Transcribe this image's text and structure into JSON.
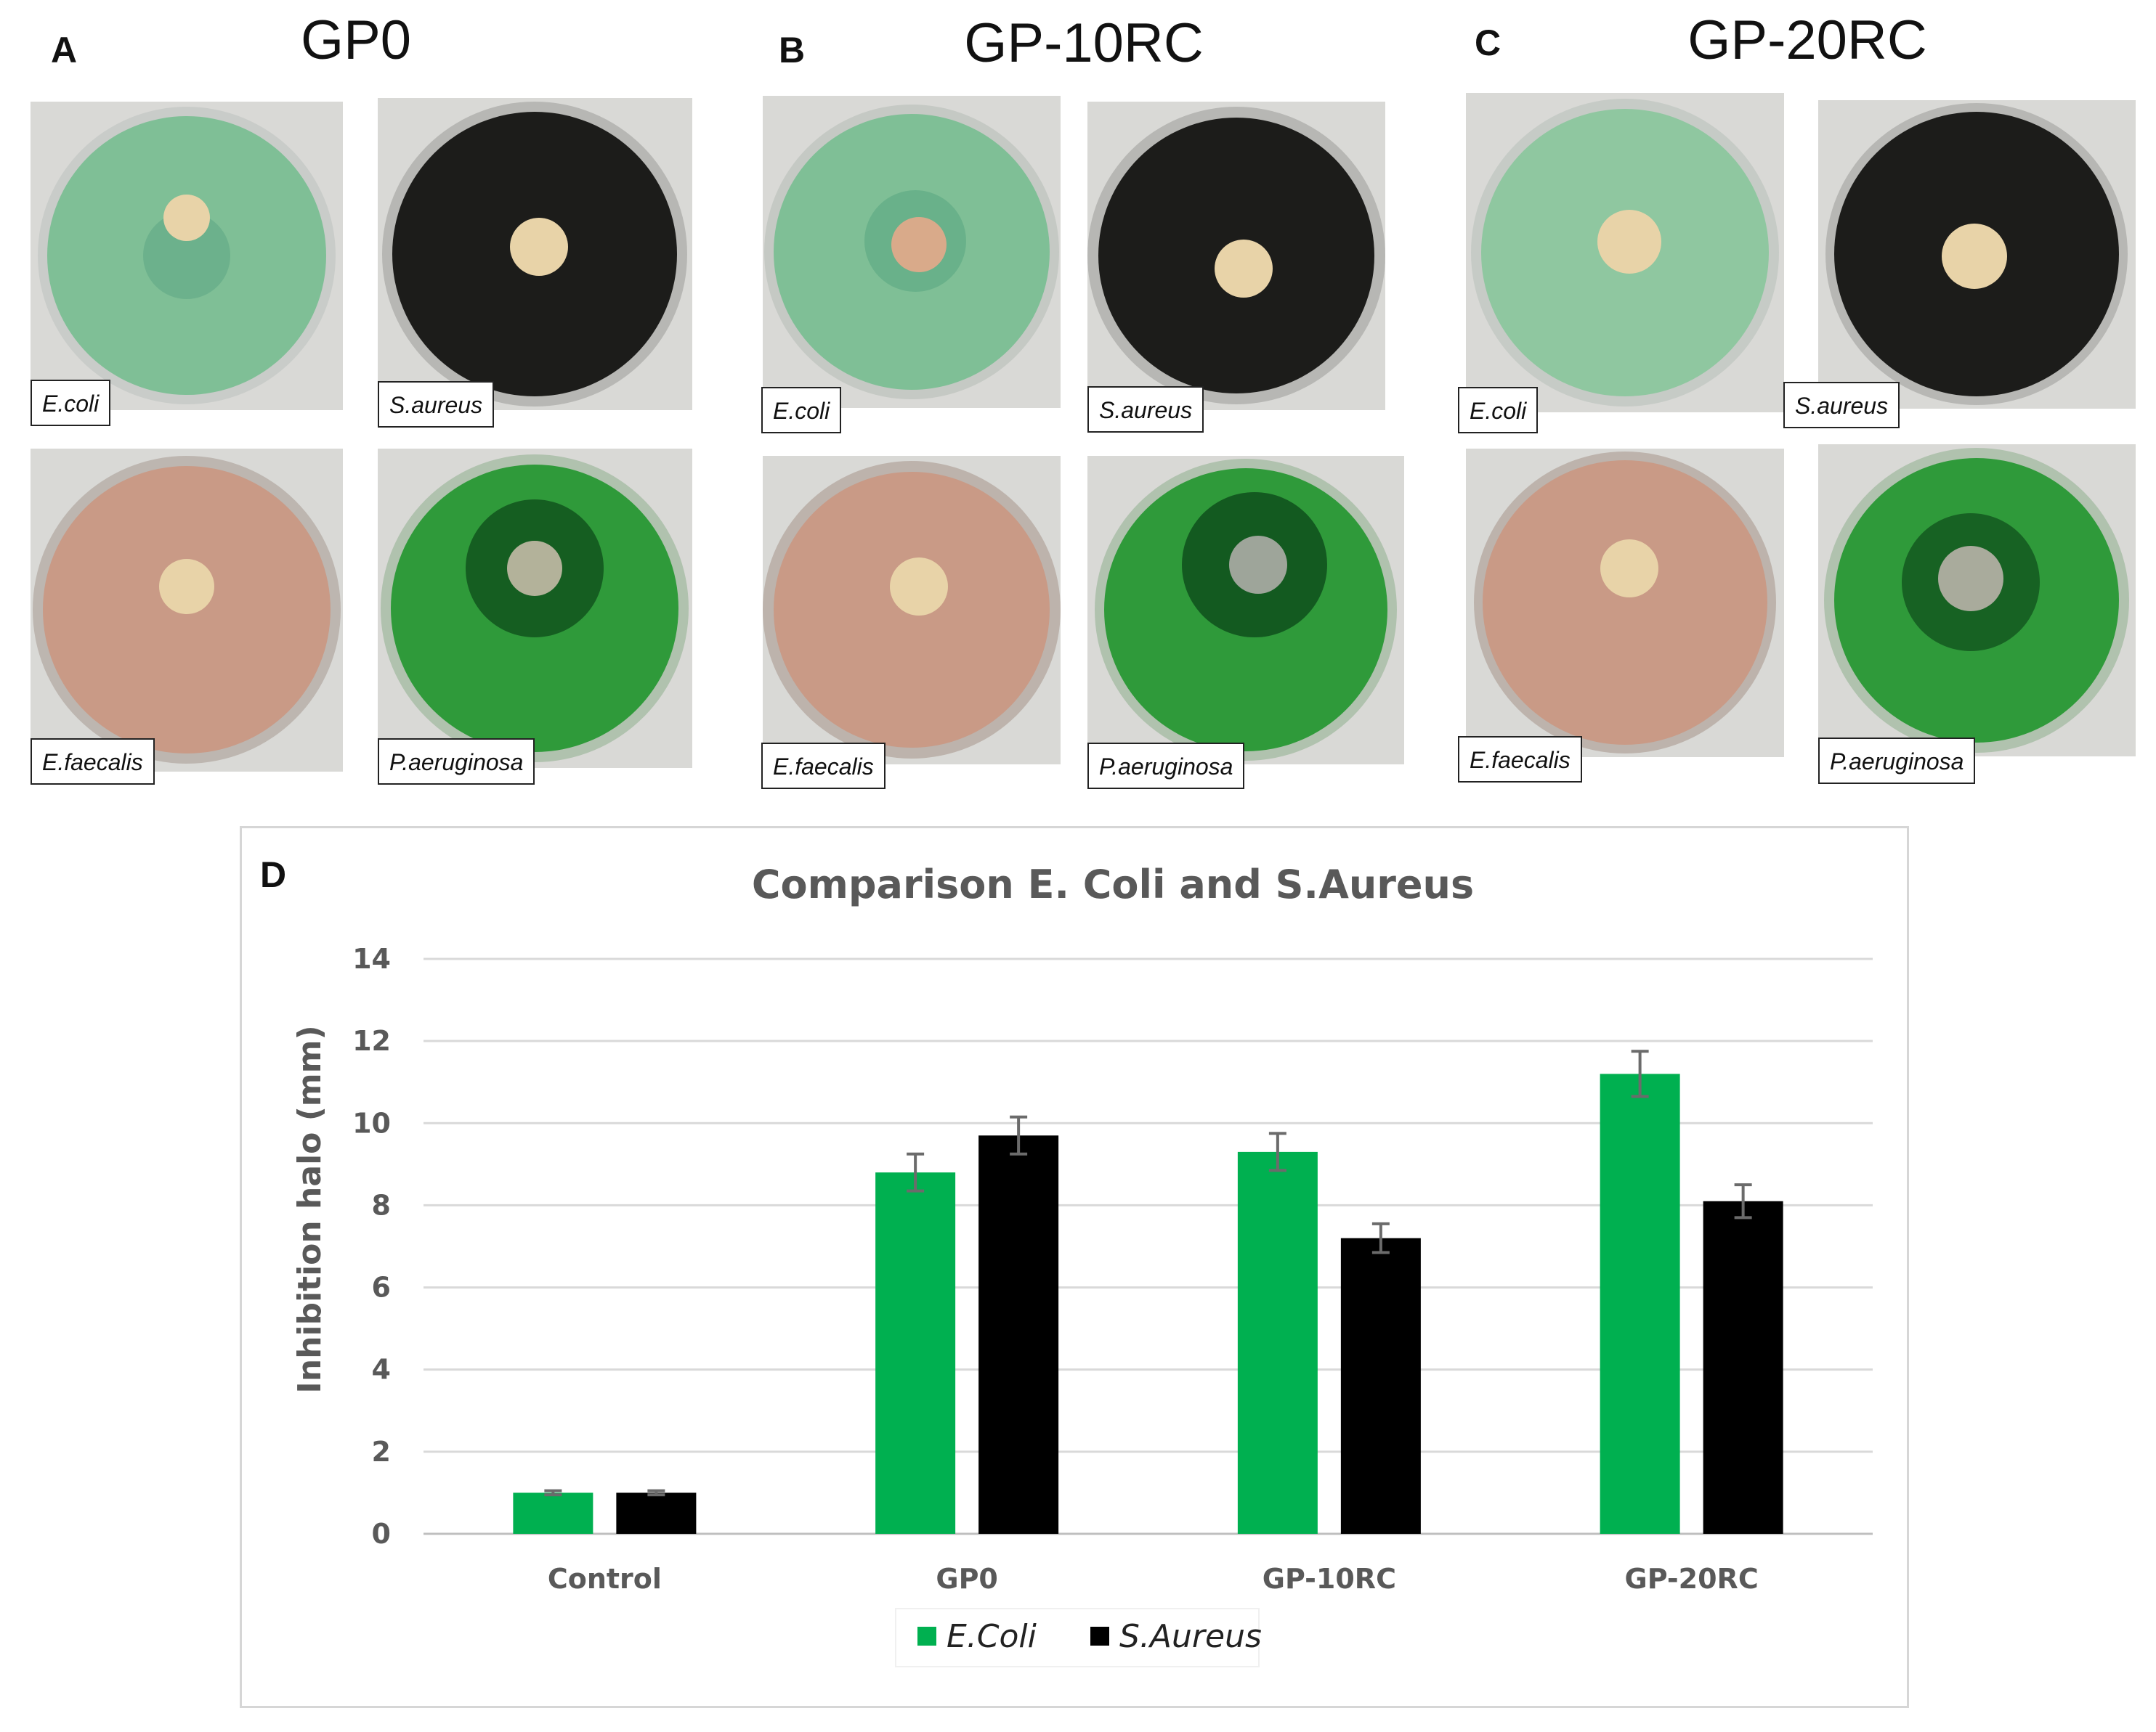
{
  "panels": {
    "A": {
      "letter": "A",
      "title": "GP0"
    },
    "B": {
      "letter": "B",
      "title": "GP-10RC"
    },
    "C": {
      "letter": "C",
      "title": "GP-20RC"
    },
    "D": {
      "letter": "D"
    }
  },
  "plate_labels": {
    "e_coli": "E.coli",
    "s_aureus": "S.aureus",
    "e_faecalis": "E.faecalis",
    "p_aeruginosa": "P.aeruginosa"
  },
  "colors": {
    "e_coli_plate": "#7fbf96",
    "s_aureus_plate": "#1c1c1a",
    "e_faecalis_plate": "#c99a86",
    "p_aeruginosa_plate": "#2f9a3a",
    "sample": "#e8d3a8",
    "ecoli_series": "#00b050",
    "saureus_series": "#000000"
  },
  "chart_data": {
    "type": "bar",
    "title": "Comparison E. Coli and S.Aureus",
    "xlabel": "",
    "ylabel": "Inhibition halo (mm)",
    "ylim": [
      0,
      14
    ],
    "yticks": [
      0,
      2,
      4,
      6,
      8,
      10,
      12,
      14
    ],
    "categories": [
      "Control",
      "GP0",
      "GP-10RC",
      "GP-20RC"
    ],
    "series": [
      {
        "name": "E.Coli",
        "color": "#00b050",
        "values": [
          1.0,
          8.8,
          9.3,
          11.2
        ],
        "errors": [
          0.05,
          0.45,
          0.45,
          0.55
        ]
      },
      {
        "name": "S.Aureus",
        "color": "#000000",
        "values": [
          1.0,
          9.7,
          7.2,
          8.1
        ],
        "errors": [
          0.05,
          0.45,
          0.35,
          0.4
        ]
      }
    ],
    "legend": "bottom-center",
    "grid": true
  }
}
